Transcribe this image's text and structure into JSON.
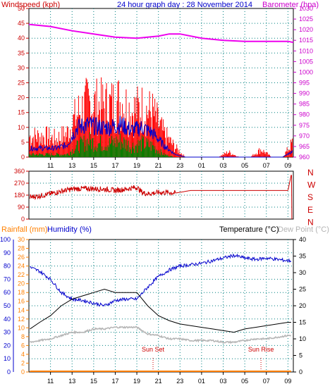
{
  "header": {
    "windspeed_label": "Windspeed (kph)",
    "title": "24 hour graph day : 28 November 2014",
    "barometer_label": "Barometer (hpa)",
    "rainfall_label": "Rainfall (mm)",
    "humidity_label": "Humidity (%)",
    "temperature_label": "Temperature (°C)",
    "dewpoint_label": "Dew Point (°C)"
  },
  "colors": {
    "wind_gust": "#ff0000",
    "wind_avg": "#0000cc",
    "wind_green": "#008000",
    "barometer": "#ee00ee",
    "direction": "#cc0000",
    "humidity": "#0000cc",
    "temperature": "#000000",
    "dewpoint": "#b4b4b4",
    "rainfall": "#ff8000",
    "grid": "#008080",
    "frame_left_axis": "#cc0000",
    "frame_right_axis": "#cc00cc"
  },
  "chart_data": [
    {
      "type": "line",
      "name": "wind-barometer",
      "x_ticks": [
        "11",
        "13",
        "15",
        "17",
        "19",
        "21",
        "23",
        "01",
        "03",
        "05",
        "07",
        "09"
      ],
      "wind_ylim": [
        0,
        50
      ],
      "wind_ticks": [
        "0",
        "5",
        "10",
        "15",
        "20",
        "25",
        "30",
        "35",
        "40",
        "45",
        "50"
      ],
      "baro_ylim": [
        960,
        1030
      ],
      "baro_ticks": [
        "960",
        "965",
        "970",
        "975",
        "980",
        "985",
        "990",
        "995",
        "1000",
        "1005",
        "1010",
        "1015",
        "1020",
        "1025",
        "1030"
      ],
      "x_hours": [
        9.5,
        10.5,
        11.5,
        12.5,
        13.5,
        14.5,
        15.5,
        16.5,
        17.5,
        18.5,
        19.5,
        20.5,
        21.5,
        22.5,
        23.5,
        24.5,
        25.5,
        26.5,
        27.5,
        28.5,
        29.5,
        30.5,
        31.5,
        32.5,
        33.5
      ],
      "gust": [
        8,
        8,
        7,
        9,
        17,
        21,
        20,
        20,
        22,
        18,
        19,
        17,
        9,
        4,
        0,
        0,
        0,
        0,
        2,
        0,
        0,
        3,
        0,
        0,
        6
      ],
      "avg": [
        3,
        3,
        3,
        4,
        10,
        11,
        10,
        10,
        11,
        9,
        10,
        8,
        4,
        1,
        0,
        0,
        0,
        0,
        0,
        0,
        0,
        0,
        0,
        0,
        2
      ],
      "green": [
        1,
        1,
        1,
        1,
        4,
        6,
        5,
        5,
        6,
        4,
        5,
        4,
        1,
        0,
        0,
        0,
        0,
        0,
        0,
        0,
        0,
        0,
        0,
        0,
        0
      ],
      "barometer_hours": [
        9,
        11,
        13,
        15,
        17,
        19,
        21,
        22,
        23,
        25,
        27,
        29,
        31,
        33,
        33.5
      ],
      "barometer": [
        1022.5,
        1021.5,
        1019.5,
        1018,
        1016.5,
        1016,
        1017,
        1018,
        1018,
        1016,
        1015,
        1014.5,
        1014.5,
        1014.5,
        1014
      ]
    },
    {
      "type": "line",
      "name": "wind-direction",
      "ylim": [
        0,
        360
      ],
      "y_ticks": [
        "0",
        "90",
        "180",
        "270",
        "360"
      ],
      "compass": [
        "N",
        "W",
        "S",
        "E",
        "N"
      ],
      "hours": [
        9.1,
        10,
        11,
        12,
        13,
        14,
        15,
        16,
        17,
        18,
        19,
        19.5,
        20,
        21,
        22,
        22.5,
        24,
        26,
        28,
        30,
        32,
        33,
        33.3,
        33.35
      ],
      "direction": [
        165,
        175,
        190,
        210,
        225,
        230,
        228,
        225,
        215,
        225,
        240,
        200,
        190,
        200,
        200,
        195,
        215,
        215,
        215,
        215,
        215,
        215,
        330,
        0
      ]
    },
    {
      "type": "line",
      "name": "temperature-humidity",
      "rain_ylim": [
        0,
        30
      ],
      "rain_ticks": [
        "0",
        "2",
        "4",
        "6",
        "8",
        "10",
        "12",
        "14",
        "16",
        "18",
        "20",
        "22",
        "24",
        "26",
        "28",
        "30"
      ],
      "humidity_ylim": [
        0,
        100
      ],
      "humidity_ticks": [
        "0",
        "10",
        "20",
        "30",
        "40",
        "50",
        "60",
        "70",
        "80",
        "90",
        "100"
      ],
      "temp_ylim": [
        0,
        40
      ],
      "temp_ticks": [
        "0",
        "5",
        "10",
        "15",
        "20",
        "25",
        "30",
        "35",
        "40"
      ],
      "hours": [
        9.1,
        10,
        11,
        12,
        13,
        14,
        15,
        16,
        17,
        18,
        19,
        20,
        21,
        22,
        23,
        24,
        25,
        26,
        27,
        28,
        29,
        30,
        31,
        32,
        33,
        33.3
      ],
      "temperature": [
        13,
        15,
        17,
        20,
        22,
        23,
        24,
        25,
        24,
        24,
        24,
        20,
        17,
        15.5,
        14.5,
        14,
        13.5,
        13,
        12.5,
        12,
        13,
        13.5,
        14,
        14.5,
        15,
        15
      ],
      "humidity": [
        79,
        76,
        70,
        60,
        55,
        54,
        52,
        50,
        54,
        55,
        55,
        64,
        72,
        77,
        80,
        81,
        82,
        84,
        86,
        88,
        86,
        85,
        86,
        85,
        84,
        84
      ],
      "dewpoint": [
        9,
        9.5,
        10,
        11,
        12,
        12,
        13,
        13,
        13.5,
        13.5,
        13.5,
        11.5,
        11,
        10,
        10,
        9.5,
        9.5,
        9.5,
        9,
        9,
        9.5,
        10,
        10,
        10.5,
        11,
        11
      ],
      "rainfall": [
        0,
        0,
        0,
        0,
        0,
        0,
        0,
        0,
        0,
        0,
        0,
        0,
        0,
        0,
        0,
        0,
        0,
        0,
        0,
        0,
        0,
        0,
        0,
        0,
        0,
        0
      ],
      "events": [
        {
          "label": "Sun Set",
          "hour": 20.5
        },
        {
          "label": "Sun Rise",
          "hour": 30.5
        }
      ]
    }
  ]
}
